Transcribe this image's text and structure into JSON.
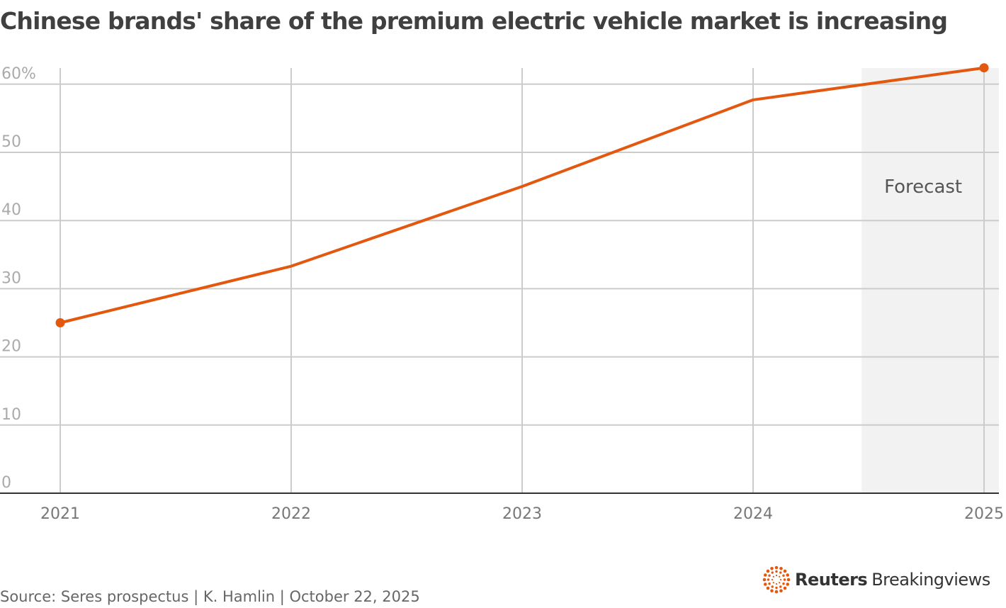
{
  "chart_data": {
    "type": "line",
    "title": "Chinese brands' share of the premium electric vehicle market is increasing",
    "x": [
      2021,
      2022,
      2023,
      2024,
      2025
    ],
    "x_tick_labels": [
      "2021",
      "2022",
      "2023",
      "2024",
      "2025"
    ],
    "series": [
      {
        "values": [
          25,
          33.3,
          45,
          57.7,
          62.4
        ],
        "color": "#e3570f"
      }
    ],
    "y_tick_labels": [
      "0",
      "10",
      "20",
      "30",
      "40",
      "50",
      "60%"
    ],
    "y_ticks": [
      0,
      10,
      20,
      30,
      40,
      50,
      60
    ],
    "ylim": [
      0,
      62.5
    ],
    "xlim": [
      2021,
      2025
    ],
    "grid": true,
    "shaded_region": {
      "label": "Forecast",
      "from": 2024.47,
      "to": 2025,
      "color": "#f2f2f2"
    },
    "endpoint_markers": true
  },
  "footer": {
    "source": "Source: Seres prospectus | K. Hamlin | October 22, 2025",
    "logo": "Reuters Breakingviews",
    "logo_bold": "Reuters",
    "logo_light": "Breakingviews"
  }
}
